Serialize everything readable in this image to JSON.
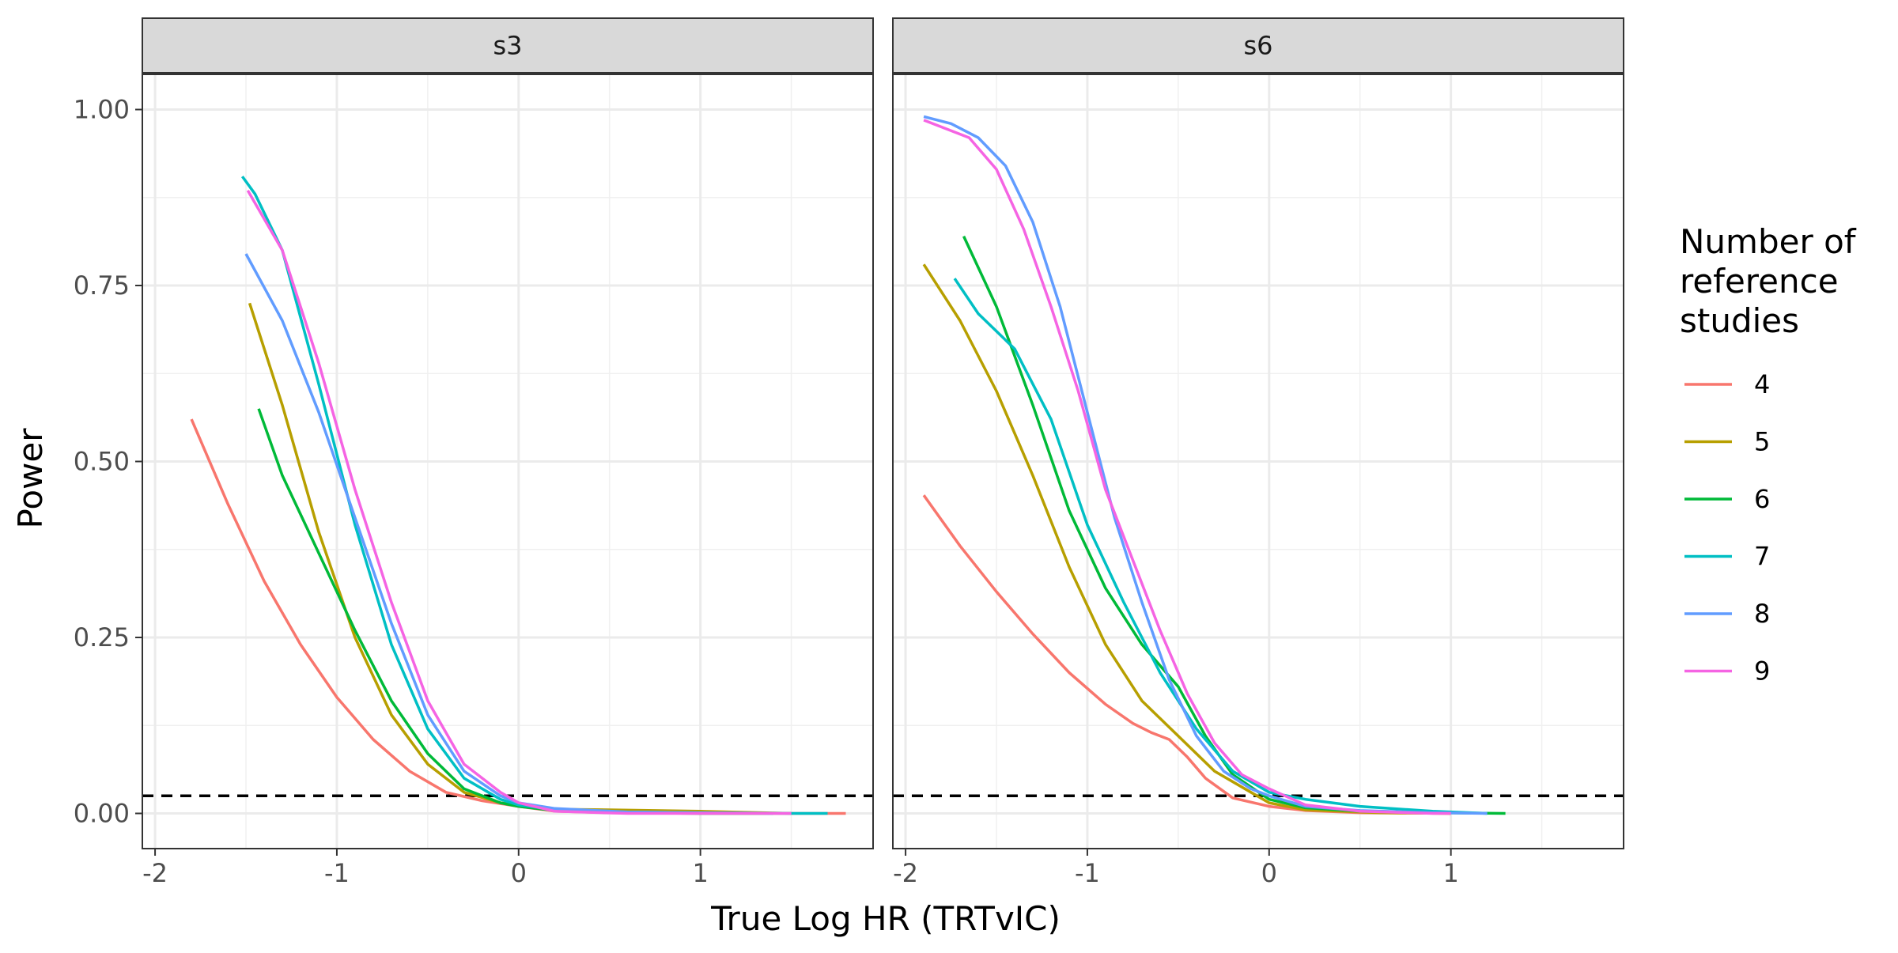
{
  "chart_data": {
    "type": "line",
    "facets": [
      "s3",
      "s6"
    ],
    "xlabel": "True Log HR (TRTvIC)",
    "ylabel": "Power",
    "xlim": [
      -2.07,
      1.95
    ],
    "ylim": [
      -0.05,
      1.05
    ],
    "x_ticks": [
      -2,
      -1,
      0,
      1
    ],
    "x_tick_labels": [
      "-2",
      "-1",
      "0",
      "1"
    ],
    "y_ticks": [
      0,
      0.25,
      0.5,
      0.75,
      1
    ],
    "y_tick_labels": [
      "0.00",
      "0.25",
      "0.50",
      "0.75",
      "1.00"
    ],
    "reference_line": {
      "y": 0.025,
      "style": "dashed"
    },
    "grid": true,
    "legend": {
      "title": "Number of reference studies",
      "title_lines": [
        "Number of",
        "reference",
        "studies"
      ],
      "placement": "right"
    },
    "series_colors": {
      "4": "#F8766D",
      "5": "#B79F00",
      "6": "#00BA38",
      "7": "#00BFC4",
      "8": "#619CFF",
      "9": "#F564E3"
    },
    "panels": [
      {
        "facet": "s3",
        "series": [
          {
            "name": "4",
            "color": "#F8766D",
            "points": [
              [
                -1.8,
                0.56
              ],
              [
                -1.6,
                0.44
              ],
              [
                -1.4,
                0.33
              ],
              [
                -1.2,
                0.24
              ],
              [
                -1.0,
                0.165
              ],
              [
                -0.8,
                0.105
              ],
              [
                -0.6,
                0.06
              ],
              [
                -0.4,
                0.03
              ],
              [
                -0.2,
                0.018
              ],
              [
                0,
                0.01
              ],
              [
                0.2,
                0.003
              ],
              [
                0.5,
                0.001
              ],
              [
                1.0,
                0.0
              ],
              [
                1.5,
                0.0
              ],
              [
                1.8,
                0.0
              ]
            ]
          },
          {
            "name": "5",
            "color": "#B79F00",
            "points": [
              [
                -1.48,
                0.725
              ],
              [
                -1.3,
                0.58
              ],
              [
                -1.1,
                0.4
              ],
              [
                -0.9,
                0.25
              ],
              [
                -0.7,
                0.14
              ],
              [
                -0.5,
                0.07
              ],
              [
                -0.3,
                0.03
              ],
              [
                -0.1,
                0.015
              ],
              [
                0,
                0.012
              ],
              [
                0.2,
                0.006
              ],
              [
                0.5,
                0.005
              ],
              [
                1.0,
                0.003
              ],
              [
                1.5,
                0.0
              ]
            ]
          },
          {
            "name": "6",
            "color": "#00BA38",
            "points": [
              [
                -1.43,
                0.575
              ],
              [
                -1.3,
                0.48
              ],
              [
                -1.1,
                0.37
              ],
              [
                -0.9,
                0.26
              ],
              [
                -0.7,
                0.16
              ],
              [
                -0.5,
                0.085
              ],
              [
                -0.3,
                0.035
              ],
              [
                -0.1,
                0.015
              ],
              [
                0,
                0.01
              ],
              [
                0.2,
                0.004
              ],
              [
                0.6,
                0.001
              ],
              [
                1.0,
                0.0
              ],
              [
                1.4,
                0.0
              ]
            ]
          },
          {
            "name": "7",
            "color": "#00BFC4",
            "points": [
              [
                -1.52,
                0.905
              ],
              [
                -1.45,
                0.88
              ],
              [
                -1.3,
                0.8
              ],
              [
                -1.1,
                0.61
              ],
              [
                -0.9,
                0.41
              ],
              [
                -0.7,
                0.24
              ],
              [
                -0.5,
                0.12
              ],
              [
                -0.3,
                0.05
              ],
              [
                -0.1,
                0.02
              ],
              [
                0,
                0.012
              ],
              [
                0.2,
                0.005
              ],
              [
                0.6,
                0.002
              ],
              [
                1.0,
                0.001
              ],
              [
                1.5,
                0.0
              ],
              [
                1.7,
                0.0
              ]
            ]
          },
          {
            "name": "8",
            "color": "#619CFF",
            "points": [
              [
                -1.5,
                0.795
              ],
              [
                -1.3,
                0.7
              ],
              [
                -1.1,
                0.57
              ],
              [
                -0.9,
                0.42
              ],
              [
                -0.7,
                0.27
              ],
              [
                -0.5,
                0.14
              ],
              [
                -0.3,
                0.06
              ],
              [
                -0.1,
                0.025
              ],
              [
                0,
                0.015
              ],
              [
                0.2,
                0.007
              ],
              [
                0.6,
                0.002
              ],
              [
                1.0,
                0.001
              ],
              [
                1.4,
                0.0
              ]
            ]
          },
          {
            "name": "9",
            "color": "#F564E3",
            "points": [
              [
                -1.49,
                0.885
              ],
              [
                -1.3,
                0.8
              ],
              [
                -1.1,
                0.64
              ],
              [
                -0.9,
                0.46
              ],
              [
                -0.7,
                0.3
              ],
              [
                -0.5,
                0.16
              ],
              [
                -0.3,
                0.07
              ],
              [
                -0.1,
                0.03
              ],
              [
                0,
                0.015
              ],
              [
                0.2,
                0.003
              ],
              [
                0.6,
                0.0
              ],
              [
                1.0,
                0.0
              ],
              [
                1.5,
                0.0
              ]
            ]
          }
        ]
      },
      {
        "facet": "s6",
        "series": [
          {
            "name": "4",
            "color": "#F8766D",
            "points": [
              [
                -1.9,
                0.452
              ],
              [
                -1.7,
                0.38
              ],
              [
                -1.5,
                0.315
              ],
              [
                -1.3,
                0.255
              ],
              [
                -1.1,
                0.2
              ],
              [
                -0.9,
                0.155
              ],
              [
                -0.75,
                0.128
              ],
              [
                -0.65,
                0.115
              ],
              [
                -0.55,
                0.105
              ],
              [
                -0.45,
                0.08
              ],
              [
                -0.35,
                0.05
              ],
              [
                -0.2,
                0.022
              ],
              [
                0,
                0.01
              ],
              [
                0.2,
                0.004
              ],
              [
                0.5,
                0.001
              ],
              [
                1.0,
                0.0
              ]
            ]
          },
          {
            "name": "5",
            "color": "#B79F00",
            "points": [
              [
                -1.9,
                0.78
              ],
              [
                -1.7,
                0.7
              ],
              [
                -1.5,
                0.6
              ],
              [
                -1.3,
                0.48
              ],
              [
                -1.1,
                0.35
              ],
              [
                -0.9,
                0.24
              ],
              [
                -0.7,
                0.16
              ],
              [
                -0.5,
                0.11
              ],
              [
                -0.3,
                0.06
              ],
              [
                -0.1,
                0.03
              ],
              [
                0,
                0.015
              ],
              [
                0.2,
                0.005
              ],
              [
                0.6,
                0.001
              ],
              [
                1.0,
                0.0
              ]
            ]
          },
          {
            "name": "6",
            "color": "#00BA38",
            "points": [
              [
                -1.68,
                0.82
              ],
              [
                -1.5,
                0.72
              ],
              [
                -1.3,
                0.58
              ],
              [
                -1.1,
                0.43
              ],
              [
                -0.9,
                0.32
              ],
              [
                -0.7,
                0.24
              ],
              [
                -0.5,
                0.18
              ],
              [
                -0.35,
                0.11
              ],
              [
                -0.2,
                0.055
              ],
              [
                0,
                0.02
              ],
              [
                0.2,
                0.008
              ],
              [
                0.5,
                0.003
              ],
              [
                0.9,
                0.001
              ],
              [
                1.3,
                0.0
              ]
            ]
          },
          {
            "name": "7",
            "color": "#00BFC4",
            "points": [
              [
                -1.73,
                0.76
              ],
              [
                -1.6,
                0.71
              ],
              [
                -1.4,
                0.66
              ],
              [
                -1.2,
                0.56
              ],
              [
                -1.0,
                0.41
              ],
              [
                -0.8,
                0.3
              ],
              [
                -0.6,
                0.2
              ],
              [
                -0.4,
                0.12
              ],
              [
                -0.2,
                0.06
              ],
              [
                0,
                0.03
              ],
              [
                0.2,
                0.02
              ],
              [
                0.5,
                0.01
              ],
              [
                0.9,
                0.003
              ],
              [
                1.2,
                0.0
              ]
            ]
          },
          {
            "name": "8",
            "color": "#619CFF",
            "points": [
              [
                -1.9,
                0.99
              ],
              [
                -1.75,
                0.98
              ],
              [
                -1.6,
                0.96
              ],
              [
                -1.45,
                0.92
              ],
              [
                -1.3,
                0.84
              ],
              [
                -1.15,
                0.72
              ],
              [
                -1.0,
                0.57
              ],
              [
                -0.85,
                0.42
              ],
              [
                -0.7,
                0.3
              ],
              [
                -0.55,
                0.19
              ],
              [
                -0.4,
                0.11
              ],
              [
                -0.25,
                0.06
              ],
              [
                -0.1,
                0.035
              ],
              [
                0,
                0.025
              ],
              [
                0.2,
                0.01
              ],
              [
                0.5,
                0.004
              ],
              [
                0.9,
                0.001
              ],
              [
                1.2,
                0.0
              ]
            ]
          },
          {
            "name": "9",
            "color": "#F564E3",
            "points": [
              [
                -1.9,
                0.985
              ],
              [
                -1.75,
                0.97
              ],
              [
                -1.65,
                0.96
              ],
              [
                -1.5,
                0.915
              ],
              [
                -1.35,
                0.83
              ],
              [
                -1.2,
                0.72
              ],
              [
                -1.05,
                0.6
              ],
              [
                -0.9,
                0.46
              ],
              [
                -0.75,
                0.36
              ],
              [
                -0.6,
                0.26
              ],
              [
                -0.45,
                0.17
              ],
              [
                -0.3,
                0.1
              ],
              [
                -0.15,
                0.055
              ],
              [
                0,
                0.035
              ],
              [
                0.2,
                0.012
              ],
              [
                0.5,
                0.003
              ],
              [
                0.9,
                0.0
              ],
              [
                1.0,
                0.0
              ]
            ]
          }
        ]
      }
    ]
  }
}
